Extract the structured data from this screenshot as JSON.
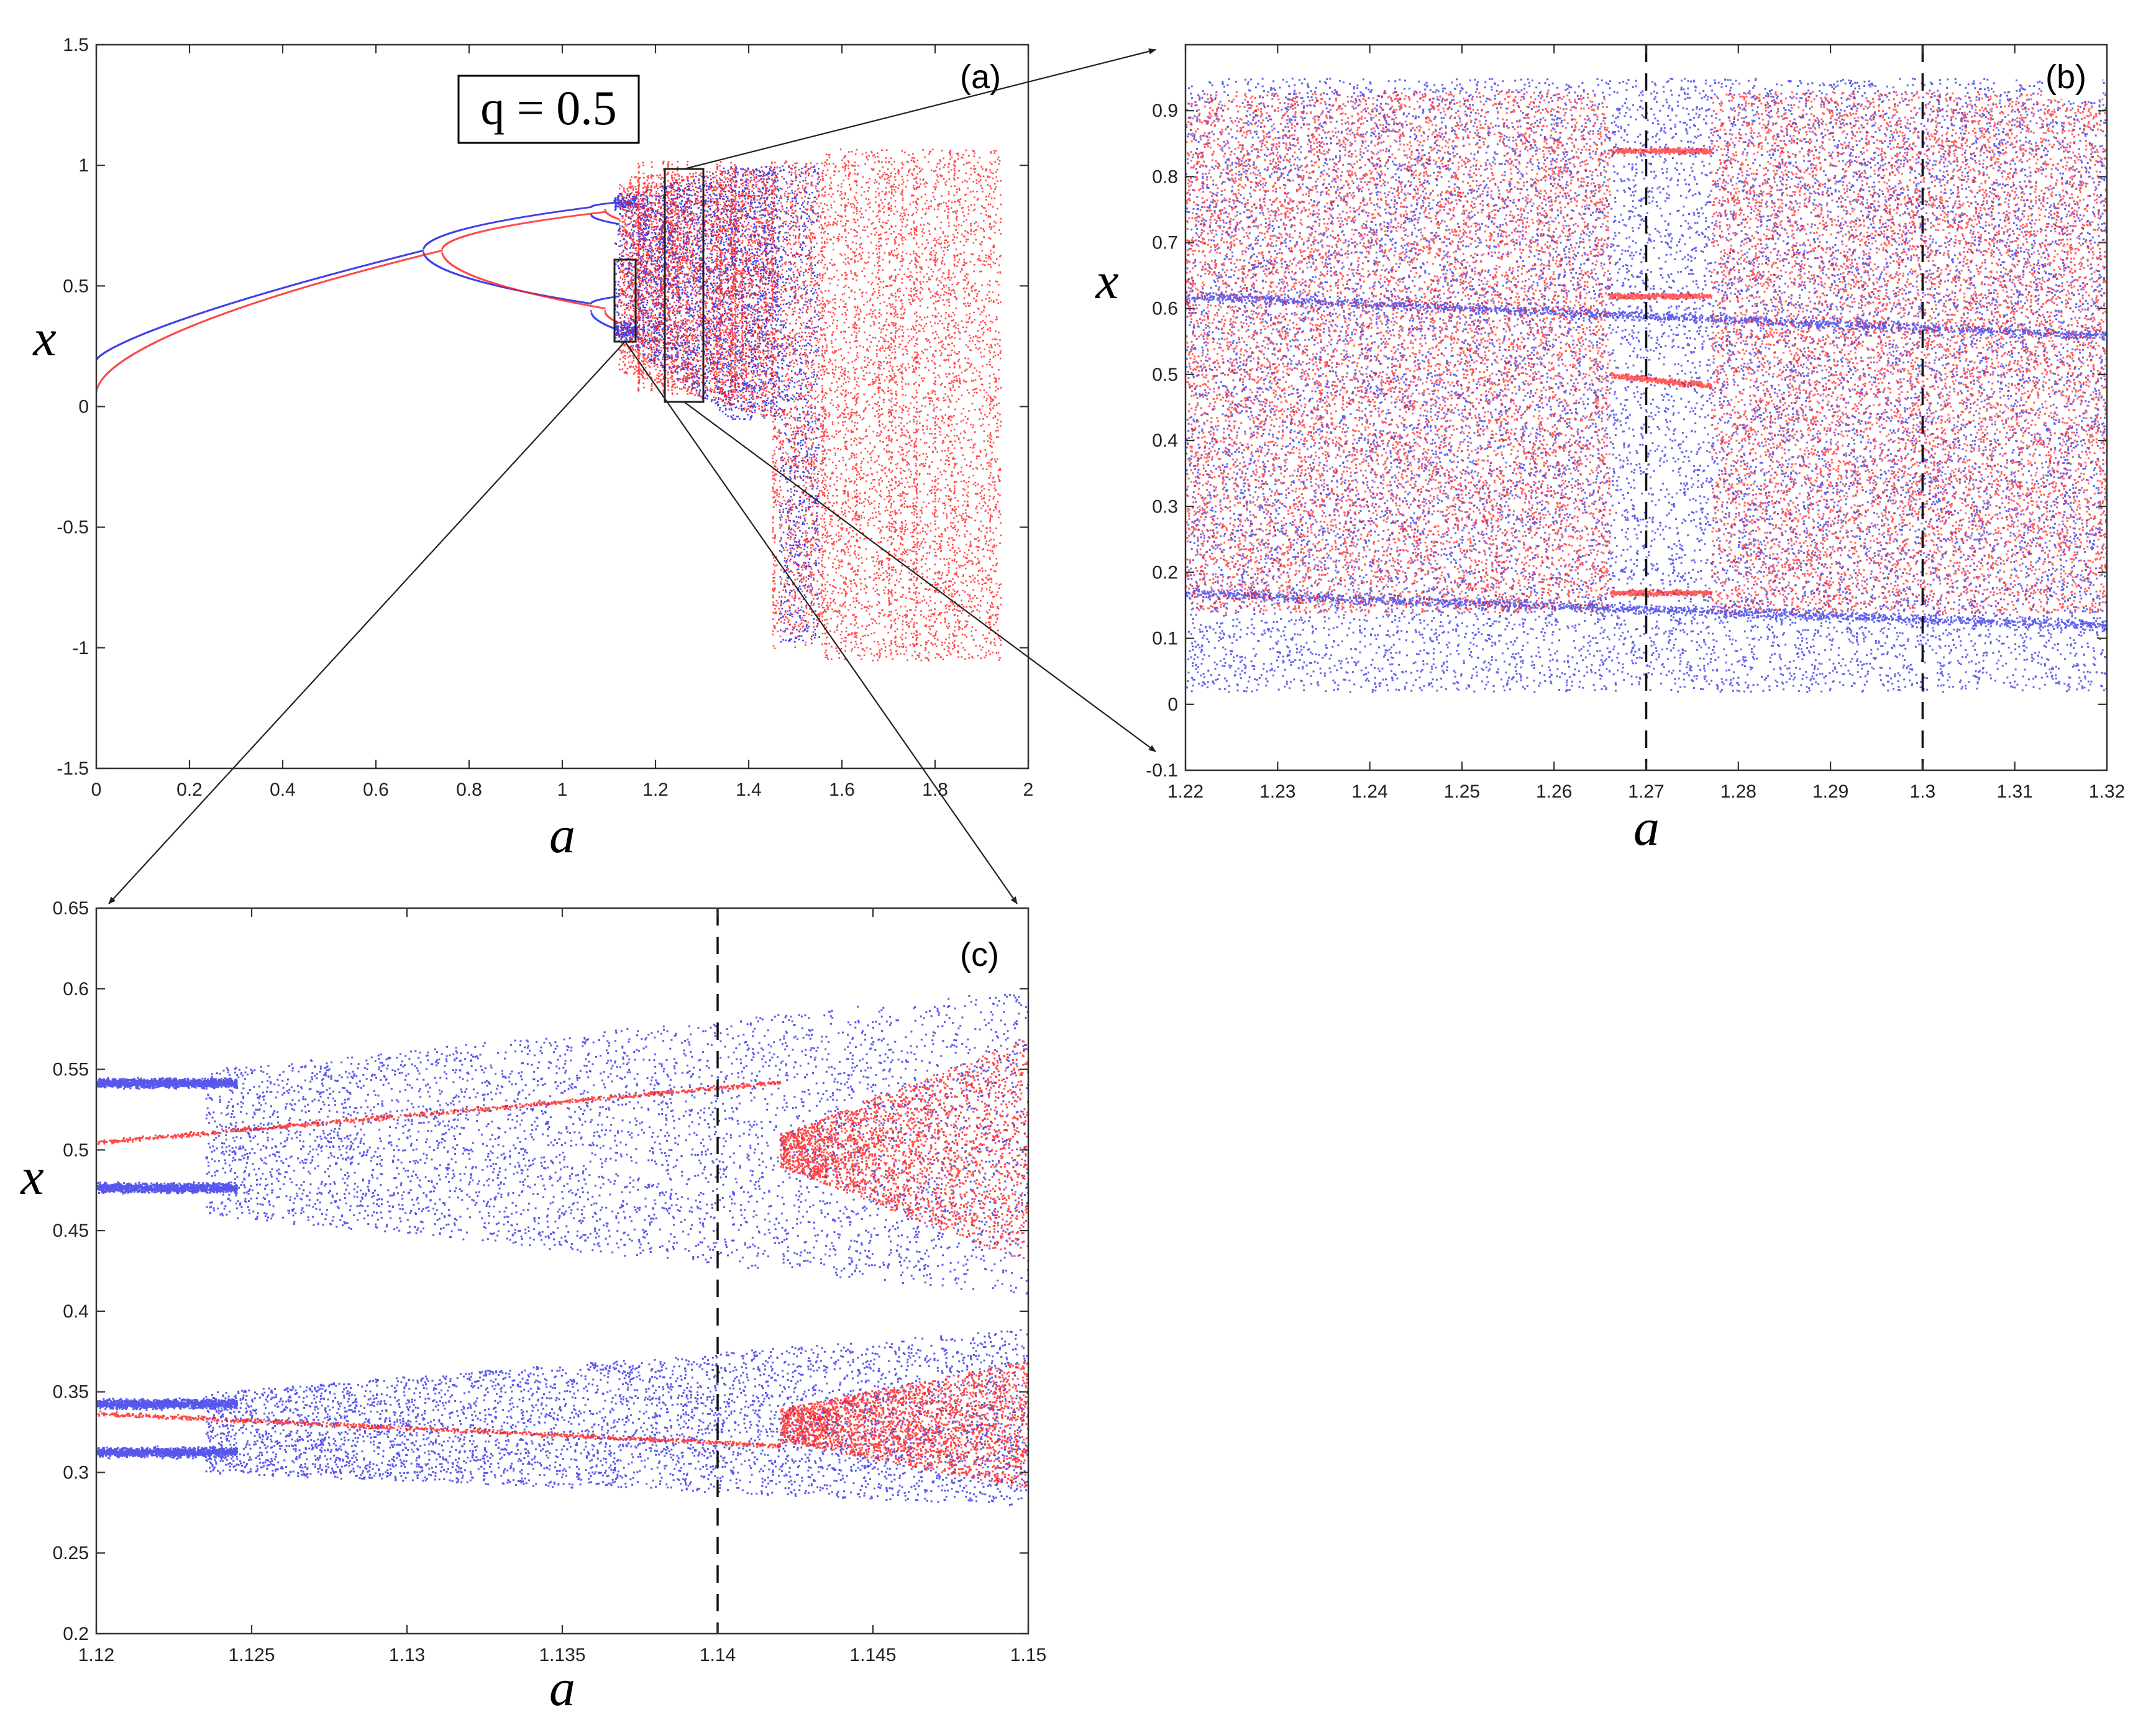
{
  "figure": {
    "parameter_label": "q = 0.5",
    "colors": {
      "series_blue": "#1f1fe6",
      "series_red": "#ff1a1a"
    }
  },
  "chart_data": [
    {
      "id": "a",
      "type": "scatter",
      "panel_label": "(a)",
      "xlabel": "a",
      "ylabel": "x",
      "xlim": [
        0,
        2
      ],
      "ylim": [
        -1.5,
        1.5
      ],
      "xticks": [
        "0",
        "0.2",
        "0.4",
        "0.6",
        "0.8",
        "1",
        "1.2",
        "1.4",
        "1.6",
        "1.8",
        "2"
      ],
      "yticks": [
        "-1.5",
        "-1",
        "-0.5",
        "0",
        "0.5",
        "1",
        "1.5"
      ],
      "annotation": "q = 0.5",
      "series": [
        {
          "name": "blue",
          "description": "fixed point from x≈0.2 at a=0, period doubling near a≈0.7 and a≈1.06, chaos beyond a≈1.12 up to a≈1.55"
        },
        {
          "name": "red",
          "description": "fixed point from x≈0.07 at a=0, period doubling near a≈0.74 and a≈1.09, chaotic band from a≈1.12 to a≈1.94 spanning about -1.05 to 1.05"
        }
      ],
      "zoom_regions": [
        {
          "target": "b",
          "a_range": [
            1.22,
            1.32
          ],
          "x_range": [
            -0.1,
            1.0
          ]
        },
        {
          "target": "c",
          "a_range": [
            1.12,
            1.15
          ],
          "x_range": [
            0.2,
            0.65
          ]
        }
      ]
    },
    {
      "id": "b",
      "type": "scatter",
      "panel_label": "(b)",
      "xlabel": "a",
      "ylabel": "x",
      "xlim": [
        1.22,
        1.32
      ],
      "ylim": [
        -0.1,
        1.0
      ],
      "xticks": [
        "1.22",
        "1.23",
        "1.24",
        "1.25",
        "1.26",
        "1.27",
        "1.28",
        "1.29",
        "1.3",
        "1.31",
        "1.32"
      ],
      "yticks": [
        "-0.1",
        "0",
        "0.1",
        "0.2",
        "0.3",
        "0.4",
        "0.5",
        "0.6",
        "0.7",
        "0.8",
        "0.9"
      ],
      "vlines": [
        1.27,
        1.3
      ],
      "periodic_window_a": [
        1.266,
        1.277
      ],
      "series": [
        {
          "name": "blue",
          "description": "chaotic attractor filling about 0.05 to 0.95"
        },
        {
          "name": "red",
          "description": "chaotic attractor filling about 0.15 to 0.93, periodic window near a=1.266-1.277 with points near 0.17, 0.5, 0.62, 0.84"
        }
      ]
    },
    {
      "id": "c",
      "type": "scatter",
      "panel_label": "(c)",
      "xlabel": "a",
      "ylabel": "x",
      "xlim": [
        1.12,
        1.15
      ],
      "ylim": [
        0.2,
        0.65
      ],
      "xticks": [
        "1.12",
        "1.125",
        "1.13",
        "1.135",
        "1.14",
        "1.145",
        "1.15"
      ],
      "yticks": [
        "0.2",
        "0.25",
        "0.3",
        "0.35",
        "0.4",
        "0.45",
        "0.5",
        "0.55",
        "0.6",
        "0.65"
      ],
      "vlines": [
        1.14
      ],
      "series": [
        {
          "name": "blue",
          "description": "period-4 orbit at a=1.12 (x≈0.54, 0.475, 0.345, 0.31) bifurcating into two chaotic bands spreading to 0.28-0.6"
        },
        {
          "name": "red",
          "description": "periodic lines from x≈0.505 and 0.337 at a=1.12 rising to bands 0.43-0.56 and 0.3-0.36 beyond a≈1.142"
        }
      ]
    }
  ]
}
